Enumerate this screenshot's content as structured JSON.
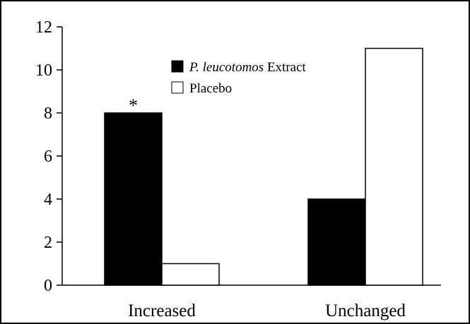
{
  "chart_data": {
    "type": "bar",
    "categories": [
      "Increased",
      "Unchanged"
    ],
    "series": [
      {
        "name": "P. leucotomos Extract",
        "name_italic": "P. leucotomos",
        "name_rest": "Extract",
        "values": [
          8,
          4
        ],
        "color": "#000000"
      },
      {
        "name": "Placebo",
        "values": [
          1,
          11
        ],
        "color": "#ffffff"
      }
    ],
    "title": "",
    "xlabel": "",
    "ylabel": "",
    "ylim": [
      0,
      12
    ],
    "yticks": [
      "0",
      "2",
      "4",
      "6",
      "8",
      "10",
      "12"
    ],
    "grid": false,
    "legend_position": "top-center",
    "annotations": [
      {
        "text": "*",
        "category": "Increased",
        "series": 0
      }
    ]
  }
}
